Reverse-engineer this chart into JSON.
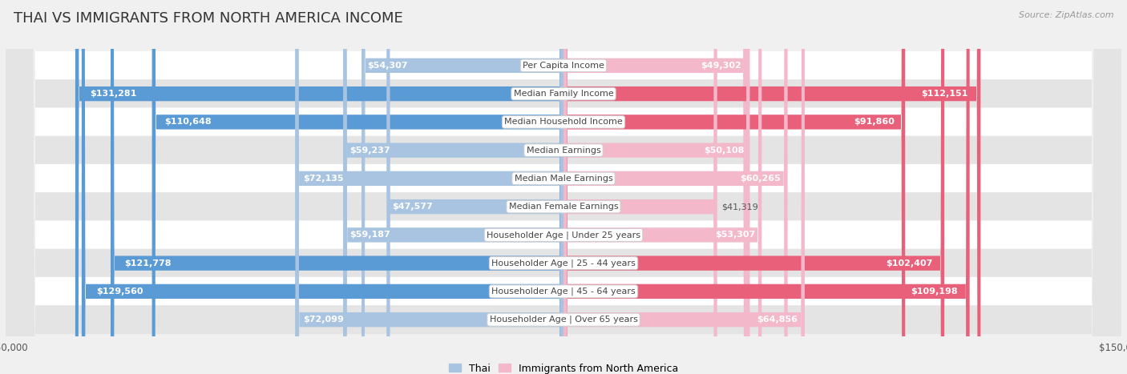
{
  "title": "THAI VS IMMIGRANTS FROM NORTH AMERICA INCOME",
  "source": "Source: ZipAtlas.com",
  "categories": [
    "Per Capita Income",
    "Median Family Income",
    "Median Household Income",
    "Median Earnings",
    "Median Male Earnings",
    "Median Female Earnings",
    "Householder Age | Under 25 years",
    "Householder Age | 25 - 44 years",
    "Householder Age | 45 - 64 years",
    "Householder Age | Over 65 years"
  ],
  "thai_values": [
    54307,
    131281,
    110648,
    59237,
    72135,
    47577,
    59187,
    121778,
    129560,
    72099
  ],
  "immigrant_values": [
    49302,
    112151,
    91860,
    50108,
    60265,
    41319,
    53307,
    102407,
    109198,
    64856
  ],
  "thai_labels": [
    "$54,307",
    "$131,281",
    "$110,648",
    "$59,237",
    "$72,135",
    "$47,577",
    "$59,187",
    "$121,778",
    "$129,560",
    "$72,099"
  ],
  "immigrant_labels": [
    "$49,302",
    "$112,151",
    "$91,860",
    "$50,108",
    "$60,265",
    "$41,319",
    "$53,307",
    "$102,407",
    "$109,198",
    "$64,856"
  ],
  "thai_color_light": "#a8c4e0",
  "thai_color_dark": "#5b9bd5",
  "immigrant_color_light": "#f4b8cb",
  "immigrant_color_dark": "#e8607a",
  "dark_threshold": 85000,
  "max_value": 150000,
  "bar_height": 0.52,
  "background_color": "#f0f0f0",
  "row_color_white": "#ffffff",
  "row_color_gray": "#e4e4e4",
  "title_fontsize": 13,
  "label_fontsize": 8,
  "category_fontsize": 8,
  "source_fontsize": 8
}
